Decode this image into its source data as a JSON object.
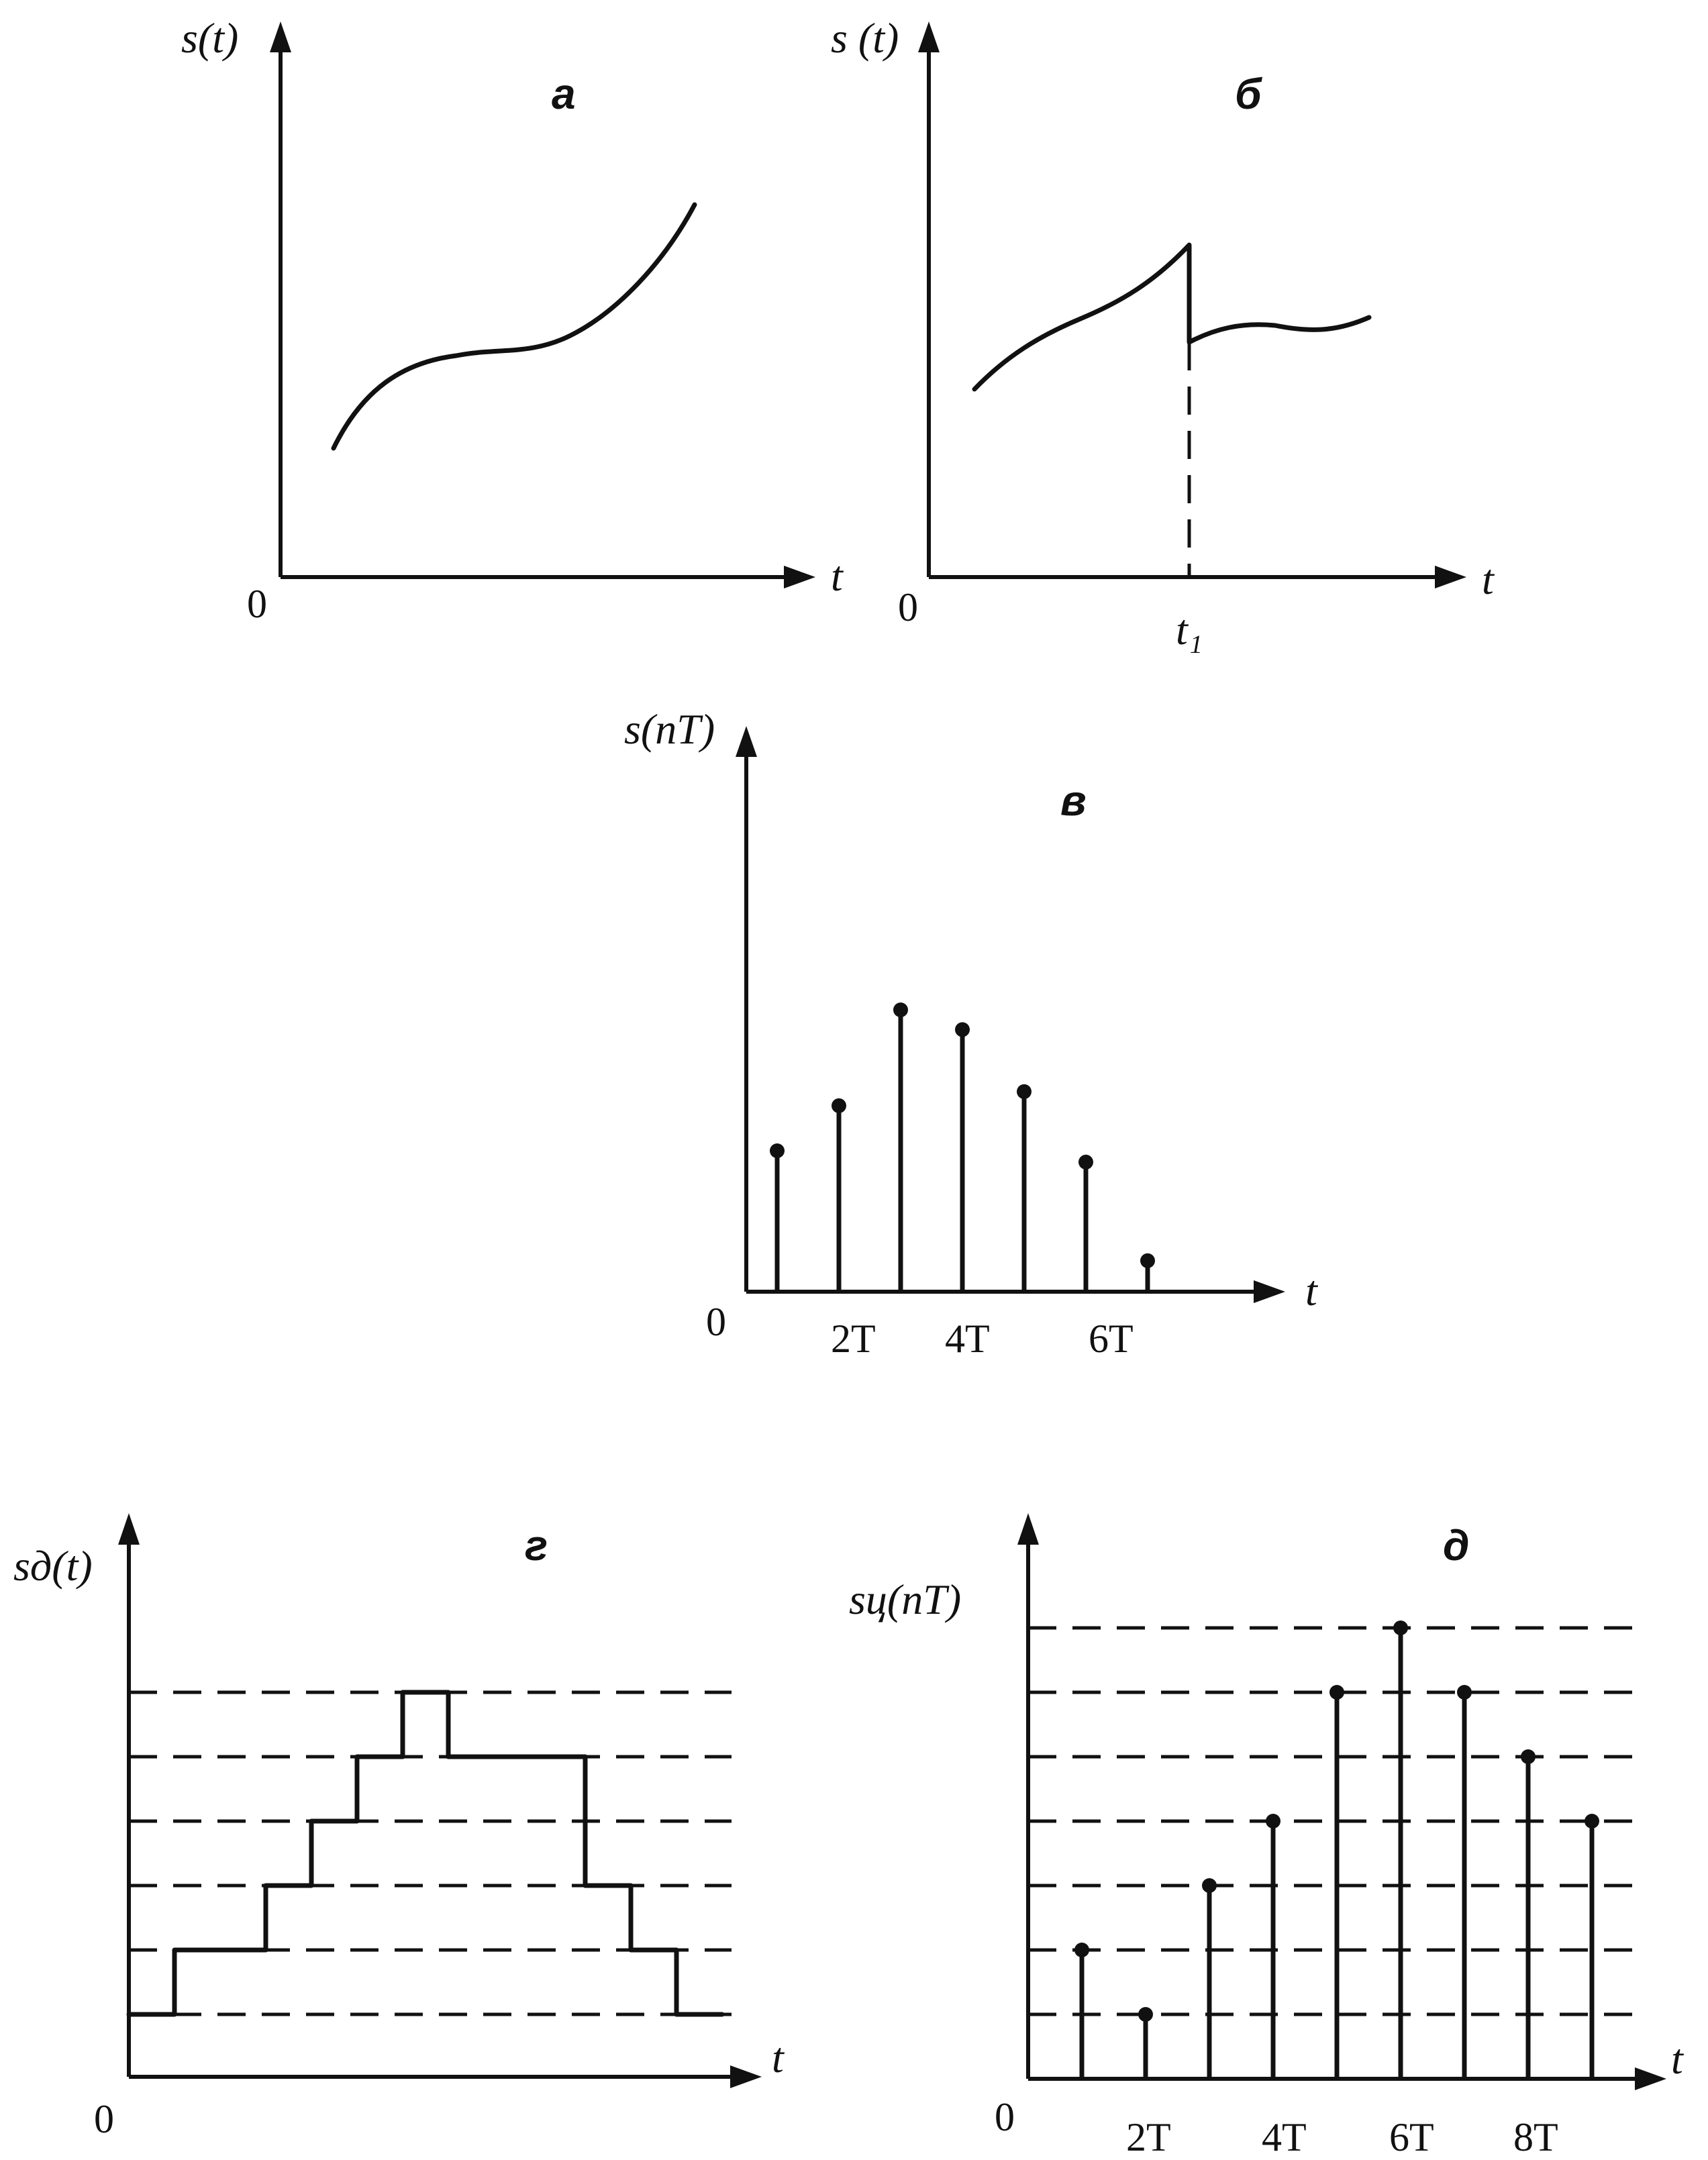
{
  "chart_data": [
    {
      "panel": "а",
      "type": "line",
      "ylabel": "s(t)",
      "xlabel": "t",
      "origin_label": "0"
    },
    {
      "panel": "б",
      "type": "line",
      "ylabel": "s (t)",
      "xlabel": "t",
      "origin_label": "0",
      "tick_labels": [
        "t₁"
      ]
    },
    {
      "panel": "в",
      "type": "scatter",
      "ylabel": "s(nT)",
      "xlabel": "t",
      "origin_label": "0",
      "tick_labels": [
        "2T",
        "4T",
        "6T"
      ],
      "x": [
        1,
        2,
        3,
        4,
        5,
        6,
        7
      ],
      "values": [
        0.5,
        0.66,
        1.0,
        0.93,
        0.71,
        0.46,
        0.11
      ]
    },
    {
      "panel": "г",
      "type": "line",
      "ylabel": "sд(t)",
      "xlabel": "t",
      "origin_label": "0",
      "levels": [
        1,
        2,
        3,
        4,
        5,
        6
      ],
      "steps": [
        1,
        2,
        2,
        3,
        4,
        5,
        6,
        5,
        5,
        5,
        3,
        2,
        1
      ]
    },
    {
      "panel": "д",
      "type": "scatter",
      "ylabel": "sц(nT)",
      "xlabel": "t",
      "origin_label": "0",
      "tick_labels": [
        "2T",
        "4T",
        "6T",
        "8T"
      ],
      "levels": [
        1,
        2,
        3,
        4,
        5,
        6,
        7
      ],
      "x": [
        1,
        2,
        3,
        4,
        5,
        6,
        7,
        8,
        9
      ],
      "values": [
        2,
        1,
        3,
        4,
        6,
        7,
        6,
        5,
        4
      ]
    }
  ]
}
